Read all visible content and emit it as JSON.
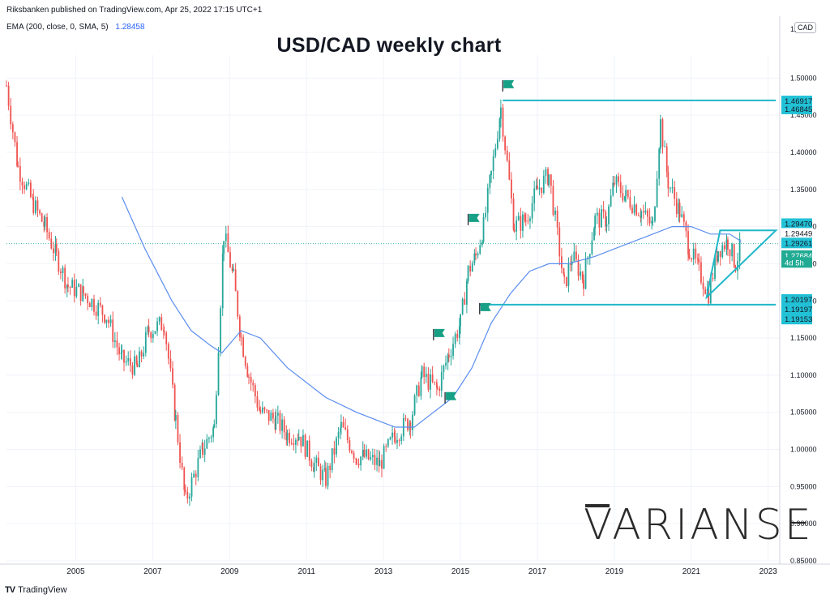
{
  "header": {
    "publisher": "Riksbanken published on TradingView.com, Apr 25, 2022 17:15 UTC+1",
    "ema_legend": "EMA (200, close, 0, SMA, 5)",
    "ema_value": "1.28458"
  },
  "currency_badge": "CAD",
  "footer": {
    "brand": "TradingView",
    "icon": "tradingview-logo-icon"
  },
  "watermark": "VARIANSE",
  "colors": {
    "up": "#26a69a",
    "down": "#ef5350",
    "ema": "#5b8def",
    "annotation": "#1fb7c9",
    "flag": "#16a085"
  },
  "chart_data": {
    "type": "line",
    "title": "USD/CAD weekly chart",
    "xlabel": "",
    "ylabel": "",
    "xlim": [
      2003.2,
      2023.3
    ],
    "ylim": [
      0.85,
      1.52
    ],
    "grid": true,
    "x_ticks": [
      "2005",
      "2007",
      "2009",
      "2011",
      "2013",
      "2015",
      "2017",
      "2019",
      "2021",
      "2023"
    ],
    "y_ticks": [
      "1.50000",
      "1.45000",
      "1.40000",
      "1.35000",
      "1.30000",
      "1.25000",
      "1.20000",
      "1.15000",
      "1.10000",
      "1.05000",
      "1.00000",
      "0.95000",
      "0.90000",
      "0.85000"
    ],
    "y_tick_top": "1.",
    "series": [
      {
        "name": "USD/CAD",
        "x": [
          2003.2,
          2003.5,
          2003.9,
          2004.2,
          2004.5,
          2004.8,
          2005.2,
          2005.8,
          2006.2,
          2006.6,
          2006.9,
          2007.3,
          2007.6,
          2007.85,
          2008.3,
          2008.6,
          2008.85,
          2009.1,
          2009.3,
          2009.5,
          2009.8,
          2010.2,
          2010.5,
          2010.8,
          2011.2,
          2011.5,
          2011.9,
          2012.3,
          2012.5,
          2012.9,
          2013.3,
          2013.7,
          2014.0,
          2014.4,
          2014.7,
          2015.0,
          2015.2,
          2015.4,
          2015.6,
          2015.8,
          2016.05,
          2016.4,
          2016.7,
          2017.0,
          2017.3,
          2017.7,
          2017.9,
          2018.2,
          2018.5,
          2018.8,
          2019.0,
          2019.3,
          2019.7,
          2020.0,
          2020.2,
          2020.4,
          2020.7,
          2020.95,
          2021.2,
          2021.45,
          2021.7,
          2021.95,
          2022.15,
          2022.3
        ],
        "y": [
          1.49,
          1.38,
          1.33,
          1.3,
          1.26,
          1.22,
          1.21,
          1.18,
          1.12,
          1.11,
          1.16,
          1.17,
          1.04,
          0.93,
          1.0,
          1.03,
          1.29,
          1.23,
          1.15,
          1.1,
          1.05,
          1.04,
          1.02,
          1.02,
          0.98,
          0.96,
          1.03,
          0.99,
          0.99,
          0.98,
          1.02,
          1.04,
          1.1,
          1.08,
          1.13,
          1.17,
          1.24,
          1.26,
          1.3,
          1.37,
          1.46,
          1.3,
          1.31,
          1.35,
          1.37,
          1.22,
          1.26,
          1.23,
          1.31,
          1.31,
          1.36,
          1.34,
          1.32,
          1.3,
          1.44,
          1.36,
          1.32,
          1.27,
          1.24,
          1.21,
          1.27,
          1.28,
          1.25,
          1.277
        ]
      },
      {
        "name": "EMA (200, close, 0, SMA, 5)",
        "x": [
          2006.2,
          2006.8,
          2007.5,
          2008.0,
          2008.5,
          2008.8,
          2009.3,
          2009.8,
          2010.5,
          2011.5,
          2012.3,
          2012.8,
          2013.3,
          2013.8,
          2014.3,
          2014.8,
          2015.3,
          2015.8,
          2016.3,
          2016.8,
          2017.3,
          2017.8,
          2018.5,
          2019.0,
          2019.5,
          2020.0,
          2020.5,
          2021.0,
          2021.5,
          2022.0,
          2022.3
        ],
        "y": [
          1.34,
          1.27,
          1.2,
          1.16,
          1.14,
          1.13,
          1.16,
          1.15,
          1.11,
          1.07,
          1.05,
          1.04,
          1.03,
          1.03,
          1.05,
          1.07,
          1.11,
          1.17,
          1.21,
          1.24,
          1.25,
          1.25,
          1.26,
          1.27,
          1.28,
          1.29,
          1.3,
          1.3,
          1.29,
          1.29,
          1.28
        ]
      }
    ],
    "annotations": {
      "horizontal_lines": [
        {
          "x_start": 2016.1,
          "x_end": 2023.2,
          "y": 1.47
        },
        {
          "x_start": 2015.5,
          "x_end": 2023.2,
          "y": 1.195
        }
      ],
      "triangle": [
        [
          2021.4,
          1.205
        ],
        [
          2021.75,
          1.295
        ],
        [
          2023.2,
          1.295
        ]
      ],
      "flags": [
        {
          "x": 2016.1,
          "y": 1.495
        },
        {
          "x": 2015.2,
          "y": 1.315
        },
        {
          "x": 2015.5,
          "y": 1.195
        },
        {
          "x": 2014.3,
          "y": 1.16
        },
        {
          "x": 2014.6,
          "y": 1.075
        }
      ],
      "watermark_text": "VARIANSE"
    },
    "price_labels": [
      {
        "text": "1.46917",
        "y": 1.4692,
        "style": "cyan"
      },
      {
        "text": "1.46845",
        "y": 1.4584,
        "style": "cyan"
      },
      {
        "text": "1.29470",
        "y": 1.304,
        "style": "cyan"
      },
      {
        "text": "1.29449",
        "y": 1.291,
        "style": "plain"
      },
      {
        "text": "1.29261",
        "y": 1.278,
        "style": "cyan"
      },
      {
        "text": "1.27684",
        "y": 1.261,
        "style": "teal"
      },
      {
        "text": "4d 5h",
        "y": 1.2518,
        "style": "teal"
      },
      {
        "text": "1.20197",
        "y": 1.202,
        "style": "cyan"
      },
      {
        "text": "1.19197",
        "y": 1.189,
        "style": "cyan"
      },
      {
        "text": "1.19153",
        "y": 1.1755,
        "style": "cyan"
      }
    ]
  }
}
